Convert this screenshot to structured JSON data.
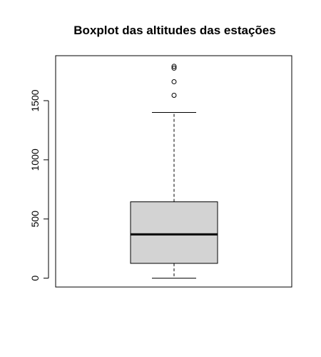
{
  "chart_data": {
    "type": "boxplot",
    "title": "Boxplot das altitudes das estações",
    "xlabel": "",
    "ylabel": "",
    "ylim": [
      -75,
      1880
    ],
    "yticks": [
      0,
      500,
      1000,
      1500
    ],
    "box": {
      "min": 0,
      "q1": 125,
      "median": 370,
      "q3": 645,
      "whisker_low": 0,
      "whisker_high": 1400,
      "outliers": [
        1545,
        1660,
        1775,
        1790
      ],
      "fill_color": "#d3d3d3",
      "line_color": "#000000"
    }
  }
}
